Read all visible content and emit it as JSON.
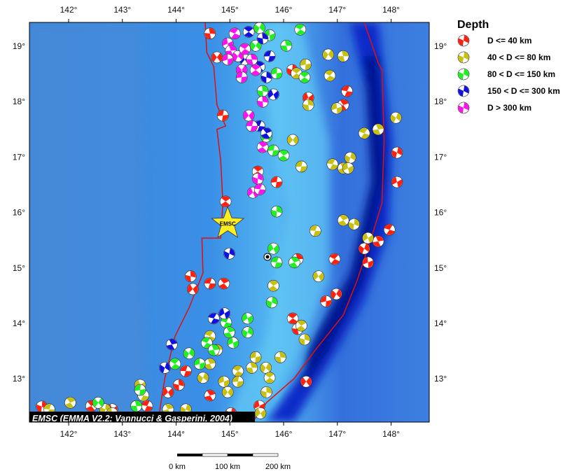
{
  "map": {
    "bounds": {
      "lon_min": 141.27,
      "lon_max": 148.71,
      "lat_min": 12.22,
      "lat_max": 19.43
    },
    "lon_ticks": [
      142,
      143,
      144,
      145,
      146,
      147,
      148
    ],
    "lat_ticks": [
      13,
      14,
      15,
      16,
      17,
      18,
      19
    ],
    "degree_symbol": "°",
    "credit": "EMSC (EMMA V2.2; Vannucci & Gasperini, 2004)",
    "marker": {
      "label": "EMSC",
      "lon": 144.96,
      "lat": 15.8,
      "color": "#ffee22"
    },
    "target": {
      "lon": 145.7,
      "lat": 15.2
    },
    "plate_boundary_color": "#e01010",
    "plate_boundaries": [
      [
        [
          144.54,
          19.43
        ],
        [
          144.57,
          18.89
        ],
        [
          144.7,
          18.63
        ],
        [
          144.76,
          17.94
        ],
        [
          144.92,
          17.56
        ],
        [
          144.76,
          17.5
        ],
        [
          144.83,
          16.93
        ],
        [
          144.87,
          16.17
        ],
        [
          144.83,
          15.54
        ],
        [
          144.48,
          15.54
        ],
        [
          144.5,
          14.91
        ],
        [
          144.24,
          14.28
        ],
        [
          143.98,
          13.77
        ],
        [
          143.79,
          13.01
        ],
        [
          143.66,
          12.22
        ]
      ],
      [
        [
          147.5,
          19.43
        ],
        [
          147.76,
          18.7
        ],
        [
          147.83,
          18.57
        ],
        [
          147.87,
          17.31
        ],
        [
          147.83,
          16.17
        ],
        [
          147.63,
          15.54
        ],
        [
          147.37,
          14.78
        ],
        [
          147.11,
          14.15
        ],
        [
          146.59,
          13.52
        ],
        [
          146.2,
          13.01
        ],
        [
          145.68,
          12.57
        ],
        [
          145.42,
          12.22
        ]
      ]
    ]
  },
  "legend": {
    "title": "Depth",
    "items": [
      {
        "label": "D <= 40 km",
        "color": "#ff2010"
      },
      {
        "label": "40 < D <= 80 km",
        "color": "#c8c010"
      },
      {
        "label": "80 < D <= 150 km",
        "color": "#20f020"
      },
      {
        "label": "150 < D <= 300 km",
        "color": "#1010e0"
      },
      {
        "label": "D > 300 km",
        "color": "#ff10f0"
      }
    ]
  },
  "scale_bar": {
    "labels": [
      "0 km",
      "100 km",
      "200 km"
    ]
  },
  "events": [
    [
      144.63,
      19.23,
      0
    ],
    [
      144.76,
      18.8,
      0
    ],
    [
      144.87,
      17.75,
      0
    ],
    [
      144.92,
      16.2,
      0
    ],
    [
      144.27,
      14.85,
      0
    ],
    [
      144.31,
      14.62,
      0
    ],
    [
      144.63,
      14.72,
      0
    ],
    [
      144.89,
      14.72,
      0
    ],
    [
      146.16,
      18.57,
      0
    ],
    [
      146.46,
      18.07,
      0
    ],
    [
      147.18,
      18.19,
      0
    ],
    [
      147.11,
      17.94,
      0
    ],
    [
      148.11,
      17.08,
      0
    ],
    [
      148.11,
      16.55,
      0
    ],
    [
      147.97,
      15.69,
      0
    ],
    [
      147.76,
      15.48,
      0
    ],
    [
      147.5,
      15.35,
      0
    ],
    [
      147.57,
      15.1,
      0
    ],
    [
      146.95,
      15.16,
      0
    ],
    [
      146.26,
      15.16,
      0
    ],
    [
      146.98,
      14.53,
      0
    ],
    [
      146.79,
      14.4,
      0
    ],
    [
      146.17,
      14.09,
      0
    ],
    [
      146.26,
      13.9,
      0
    ],
    [
      146.42,
      12.95,
      0
    ],
    [
      145.87,
      16.55,
      0
    ],
    [
      145.52,
      16.74,
      0
    ],
    [
      144.05,
      12.89,
      0
    ],
    [
      143.85,
      12.76,
      0
    ],
    [
      144.18,
      13.14,
      0
    ],
    [
      142.42,
      12.51,
      0
    ],
    [
      141.5,
      12.5,
      0
    ],
    [
      142.81,
      12.45,
      0
    ],
    [
      143.46,
      12.51,
      0
    ],
    [
      144.63,
      12.7,
      0
    ],
    [
      145.02,
      12.38,
      0
    ],
    [
      145.55,
      12.51,
      0
    ],
    [
      143.92,
      12.32,
      0
    ],
    [
      144.63,
      13.27,
      1
    ],
    [
      144.5,
      13.02,
      1
    ],
    [
      144.89,
      12.95,
      1
    ],
    [
      145.15,
      13.14,
      1
    ],
    [
      145.41,
      13.2,
      1
    ],
    [
      145.67,
      13.2,
      1
    ],
    [
      145.48,
      13.39,
      1
    ],
    [
      145.74,
      13.02,
      1
    ],
    [
      145.94,
      13.39,
      1
    ],
    [
      144.96,
      12.76,
      1
    ],
    [
      145.15,
      12.95,
      1
    ],
    [
      146.33,
      13.96,
      1
    ],
    [
      146.39,
      13.71,
      1
    ],
    [
      146.65,
      14.85,
      1
    ],
    [
      146.59,
      15.67,
      1
    ],
    [
      147.11,
      15.86,
      1
    ],
    [
      147.31,
      15.79,
      1
    ],
    [
      147.57,
      15.54,
      1
    ],
    [
      146.91,
      16.87,
      1
    ],
    [
      147.11,
      16.8,
      1
    ],
    [
      147.24,
      16.99,
      1
    ],
    [
      147.2,
      16.8,
      1
    ],
    [
      147.5,
      17.43,
      1
    ],
    [
      147.76,
      17.5,
      1
    ],
    [
      148.09,
      17.71,
      1
    ],
    [
      146.99,
      17.88,
      1
    ],
    [
      146.86,
      18.47,
      1
    ],
    [
      147.11,
      18.82,
      1
    ],
    [
      146.83,
      18.85,
      1
    ],
    [
      146.41,
      18.67,
      1
    ],
    [
      146.24,
      18.51,
      1
    ],
    [
      146.46,
      17.94,
      1
    ],
    [
      146.17,
      17.31,
      1
    ],
    [
      146.33,
      16.83,
      1
    ],
    [
      145.81,
      14.68,
      1
    ],
    [
      145.68,
      12.76,
      1
    ],
    [
      145.57,
      12.38,
      1
    ],
    [
      141.64,
      12.45,
      1
    ],
    [
      142.03,
      12.57,
      1
    ],
    [
      142.68,
      12.45,
      1
    ],
    [
      143.33,
      12.89,
      1
    ],
    [
      143.39,
      12.7,
      1
    ],
    [
      143.85,
      12.45,
      1
    ],
    [
      144.18,
      12.45,
      1
    ],
    [
      142.81,
      12.38,
      1
    ],
    [
      144.63,
      13.77,
      1
    ],
    [
      144.76,
      13.52,
      1
    ],
    [
      145.55,
      19.33,
      2
    ],
    [
      145.74,
      19.2,
      2
    ],
    [
      146.31,
      19.3,
      2
    ],
    [
      146.05,
      19.01,
      2
    ],
    [
      145.48,
      19.01,
      2
    ],
    [
      145.87,
      18.51,
      2
    ],
    [
      146.39,
      18.44,
      2
    ],
    [
      145.61,
      18.19,
      2
    ],
    [
      145.68,
      17.37,
      2
    ],
    [
      145.81,
      17.12,
      2
    ],
    [
      146.0,
      17.03,
      2
    ],
    [
      145.87,
      16.02,
      2
    ],
    [
      145.81,
      15.35,
      2
    ],
    [
      145.87,
      15.1,
      2
    ],
    [
      146.2,
      15.1,
      2
    ],
    [
      145.78,
      14.38,
      2
    ],
    [
      145.33,
      14.09,
      2
    ],
    [
      144.93,
      14.02,
      2
    ],
    [
      144.99,
      13.84,
      2
    ],
    [
      145.33,
      13.84,
      2
    ],
    [
      145.06,
      13.65,
      2
    ],
    [
      144.57,
      13.65,
      2
    ],
    [
      144.7,
      13.52,
      2
    ],
    [
      144.24,
      13.46,
      2
    ],
    [
      144.44,
      13.27,
      2
    ],
    [
      143.98,
      13.27,
      2
    ],
    [
      143.26,
      12.51,
      2
    ],
    [
      142.55,
      12.57,
      2
    ],
    [
      143.33,
      12.8,
      2
    ],
    [
      145.35,
      19.26,
      3
    ],
    [
      145.61,
      19.14,
      3
    ],
    [
      145.28,
      18.76,
      3
    ],
    [
      145.74,
      18.82,
      3
    ],
    [
      145.55,
      18.63,
      3
    ],
    [
      145.68,
      18.44,
      3
    ],
    [
      145.81,
      18.13,
      3
    ],
    [
      145.55,
      17.56,
      3
    ],
    [
      145.68,
      17.43,
      3
    ],
    [
      144.99,
      15.26,
      3
    ],
    [
      144.9,
      14.18,
      3
    ],
    [
      144.7,
      14.09,
      3
    ],
    [
      143.92,
      13.62,
      3
    ],
    [
      143.79,
      13.2,
      3
    ],
    [
      144.96,
      19.05,
      4
    ],
    [
      145.09,
      19.23,
      4
    ],
    [
      145.02,
      18.92,
      4
    ],
    [
      145.15,
      18.82,
      4
    ],
    [
      144.96,
      18.76,
      4
    ],
    [
      145.28,
      18.95,
      4
    ],
    [
      145.41,
      18.76,
      4
    ],
    [
      145.22,
      18.57,
      4
    ],
    [
      145.22,
      18.44,
      4
    ],
    [
      145.48,
      18.57,
      4
    ],
    [
      145.61,
      18.0,
      4
    ],
    [
      145.35,
      17.75,
      4
    ],
    [
      145.41,
      17.56,
      4
    ],
    [
      145.61,
      17.18,
      4
    ],
    [
      145.52,
      16.61,
      4
    ],
    [
      145.43,
      16.36,
      4
    ],
    [
      145.56,
      16.42,
      4
    ]
  ]
}
